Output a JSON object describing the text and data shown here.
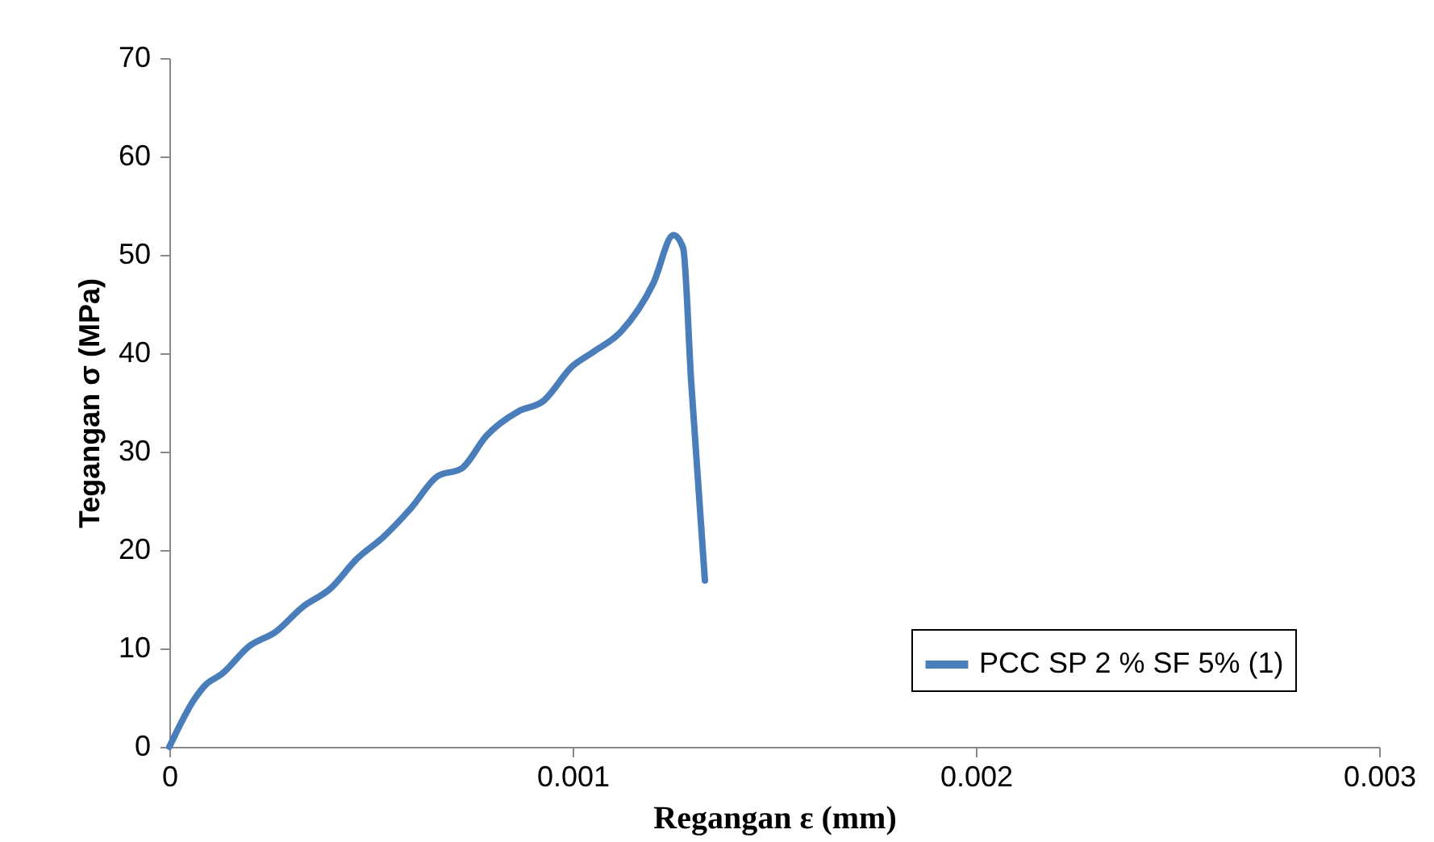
{
  "chart_data": {
    "type": "line",
    "xlabel": "Regangan ε (mm)",
    "ylabel": "Tegangan σ (MPa)",
    "xlim": [
      0,
      0.003
    ],
    "xticks": [
      0,
      0.001,
      0.002,
      0.003
    ],
    "ylim": [
      0,
      70
    ],
    "yticks": [
      0,
      10,
      20,
      30,
      40,
      50,
      60,
      70
    ],
    "grid": false,
    "legend": "right",
    "marker": "none",
    "line_style": "solid",
    "series": [
      {
        "name": "PCC SP 2 % SF 5% (1)",
        "color": "#4a7ebb",
        "x": [
          0,
          6.3e-05,
          9e-05,
          0.00013,
          0.000197,
          0.000264,
          0.00033,
          0.0004,
          0.000465,
          0.00053,
          0.0006,
          0.000665,
          0.000725,
          0.000786,
          0.000866,
          0.000926,
          0.001,
          0.00105,
          0.00112,
          0.0012,
          0.00125,
          0.001274,
          0.001294,
          0.001328
        ],
        "values": [
          0,
          4.9,
          6.3,
          7.4,
          10.2,
          11.7,
          14.2,
          16.1,
          19.1,
          21.3,
          24.3,
          27.5,
          28.3,
          31.6,
          34.1,
          35.1,
          38.7,
          40.1,
          42.2,
          47.1,
          52.0,
          50.7,
          37.1,
          16.9
        ]
      }
    ]
  }
}
